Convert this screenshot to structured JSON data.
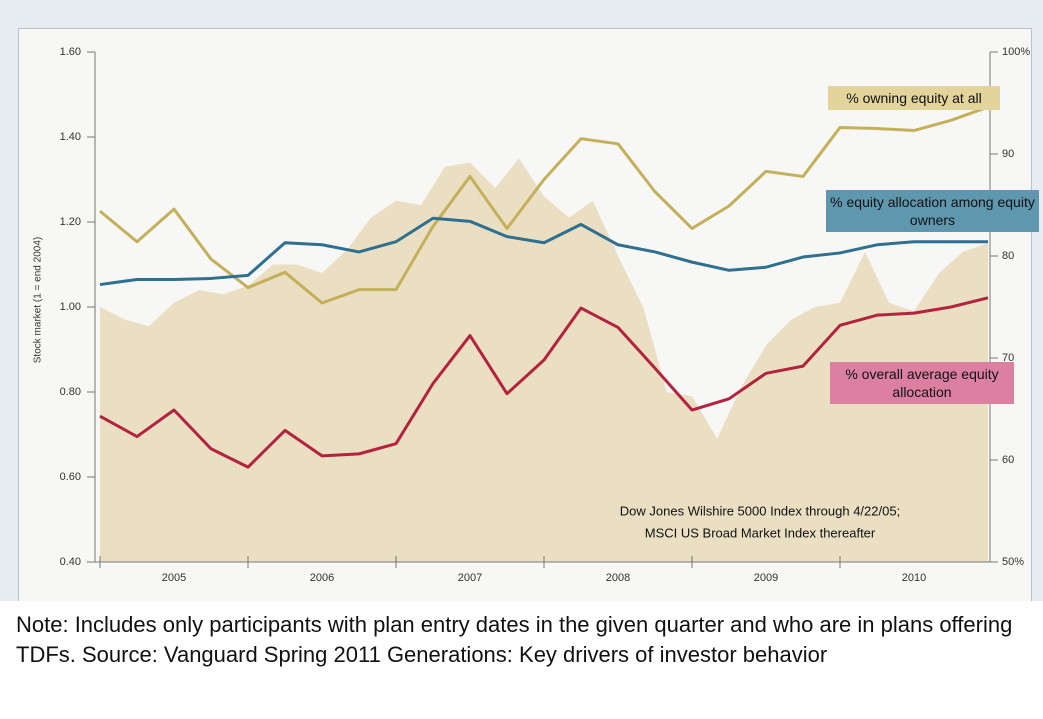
{
  "chart_data": {
    "type": "line",
    "y_axis_label": "Stock market (1 = end 2004)",
    "categories": [
      "2005",
      "2006",
      "2007",
      "2008",
      "2009",
      "2010"
    ],
    "xlim": [
      2005,
      2011
    ],
    "ylim": [
      0.4,
      1.6
    ],
    "yticks": [
      {
        "value": 1.6,
        "label": "1.60"
      },
      {
        "value": 1.4,
        "label": "1.40"
      },
      {
        "value": 1.2,
        "label": "1.20"
      },
      {
        "value": 1.0,
        "label": "1.00"
      },
      {
        "value": 0.8,
        "label": "0.80"
      },
      {
        "value": 0.6,
        "label": "0.60"
      },
      {
        "value": 0.4,
        "label": "0.40"
      }
    ],
    "y2lim": [
      50,
      100
    ],
    "y2ticks": [
      {
        "value": 100,
        "label": "100%"
      },
      90,
      80,
      70,
      60,
      {
        "value": 50,
        "label": "50%"
      }
    ],
    "area": {
      "color": "#ebdfc3",
      "x": [
        2005,
        2005.17,
        2005.33,
        2005.5,
        2005.67,
        2005.83,
        2006,
        2006.17,
        2006.33,
        2006.5,
        2006.67,
        2006.83,
        2007,
        2007.17,
        2007.33,
        2007.5,
        2007.67,
        2007.83,
        2008,
        2008.17,
        2008.33,
        2008.5,
        2008.67,
        2008.83,
        2009,
        2009.17,
        2009.33,
        2009.5,
        2009.67,
        2009.83,
        2010,
        2010.17,
        2010.33,
        2010.5,
        2010.67,
        2010.83,
        2011
      ],
      "values": [
        1.0,
        0.97,
        0.955,
        1.01,
        1.04,
        1.03,
        1.05,
        1.1,
        1.1,
        1.08,
        1.135,
        1.21,
        1.25,
        1.24,
        1.33,
        1.34,
        1.28,
        1.35,
        1.26,
        1.21,
        1.25,
        1.12,
        1.0,
        0.8,
        0.79,
        0.69,
        0.81,
        0.91,
        0.97,
        1.0,
        1.01,
        1.13,
        1.01,
        0.99,
        1.08,
        1.13,
        1.15
      ]
    },
    "x": [
      2005,
      2005.25,
      2005.5,
      2005.75,
      2006,
      2006.25,
      2006.5,
      2006.75,
      2007,
      2007.25,
      2007.5,
      2007.75,
      2008,
      2008.25,
      2008.5,
      2008.75,
      2009,
      2009.25,
      2009.5,
      2009.75,
      2010,
      2010.25,
      2010.5,
      2010.75,
      2011
    ],
    "series": [
      {
        "name": "% owning equity at all",
        "color": "#c4b05a",
        "label_color": "#e2d49b",
        "axis": "y2",
        "values": [
          84.4,
          81.4,
          84.6,
          79.7,
          76.9,
          78.4,
          75.4,
          76.7,
          76.7,
          82.9,
          87.8,
          82.7,
          87.5,
          91.5,
          91.0,
          86.3,
          82.7,
          84.9,
          88.3,
          87.8,
          92.6,
          92.5,
          92.3,
          93.3,
          94.6
        ]
      },
      {
        "name": "% equity allocation among equity owners",
        "color": "#2f6f8f",
        "label_color": "#5f98ae",
        "axis": "y2",
        "values": [
          77.2,
          77.7,
          77.7,
          77.8,
          78.1,
          81.3,
          81.1,
          80.4,
          81.4,
          83.7,
          83.4,
          81.9,
          81.3,
          83.1,
          81.1,
          80.4,
          79.4,
          78.6,
          78.9,
          79.9,
          80.3,
          81.1,
          81.4,
          81.4,
          81.4
        ]
      },
      {
        "name": "% overall average equity allocation",
        "color": "#b3223e",
        "label_color": "#db80a0",
        "axis": "y2",
        "values": [
          64.3,
          62.3,
          64.9,
          61.1,
          59.3,
          62.9,
          60.4,
          60.6,
          61.6,
          67.5,
          72.2,
          66.5,
          69.8,
          74.9,
          73.0,
          69.0,
          64.9,
          66.0,
          68.5,
          69.2,
          73.2,
          74.2,
          74.4,
          75.0,
          75.9
        ]
      }
    ],
    "source_note": [
      "Dow Jones Wilshire 5000 Index through 4/22/05;",
      "MSCI US Broad Market Index thereafter"
    ]
  },
  "note": "Note: Includes only participants with plan entry dates in the given quarter and who are in plans offering TDFs.  Source: Vanguard Spring 2011 Generations: Key drivers of investor behavior"
}
